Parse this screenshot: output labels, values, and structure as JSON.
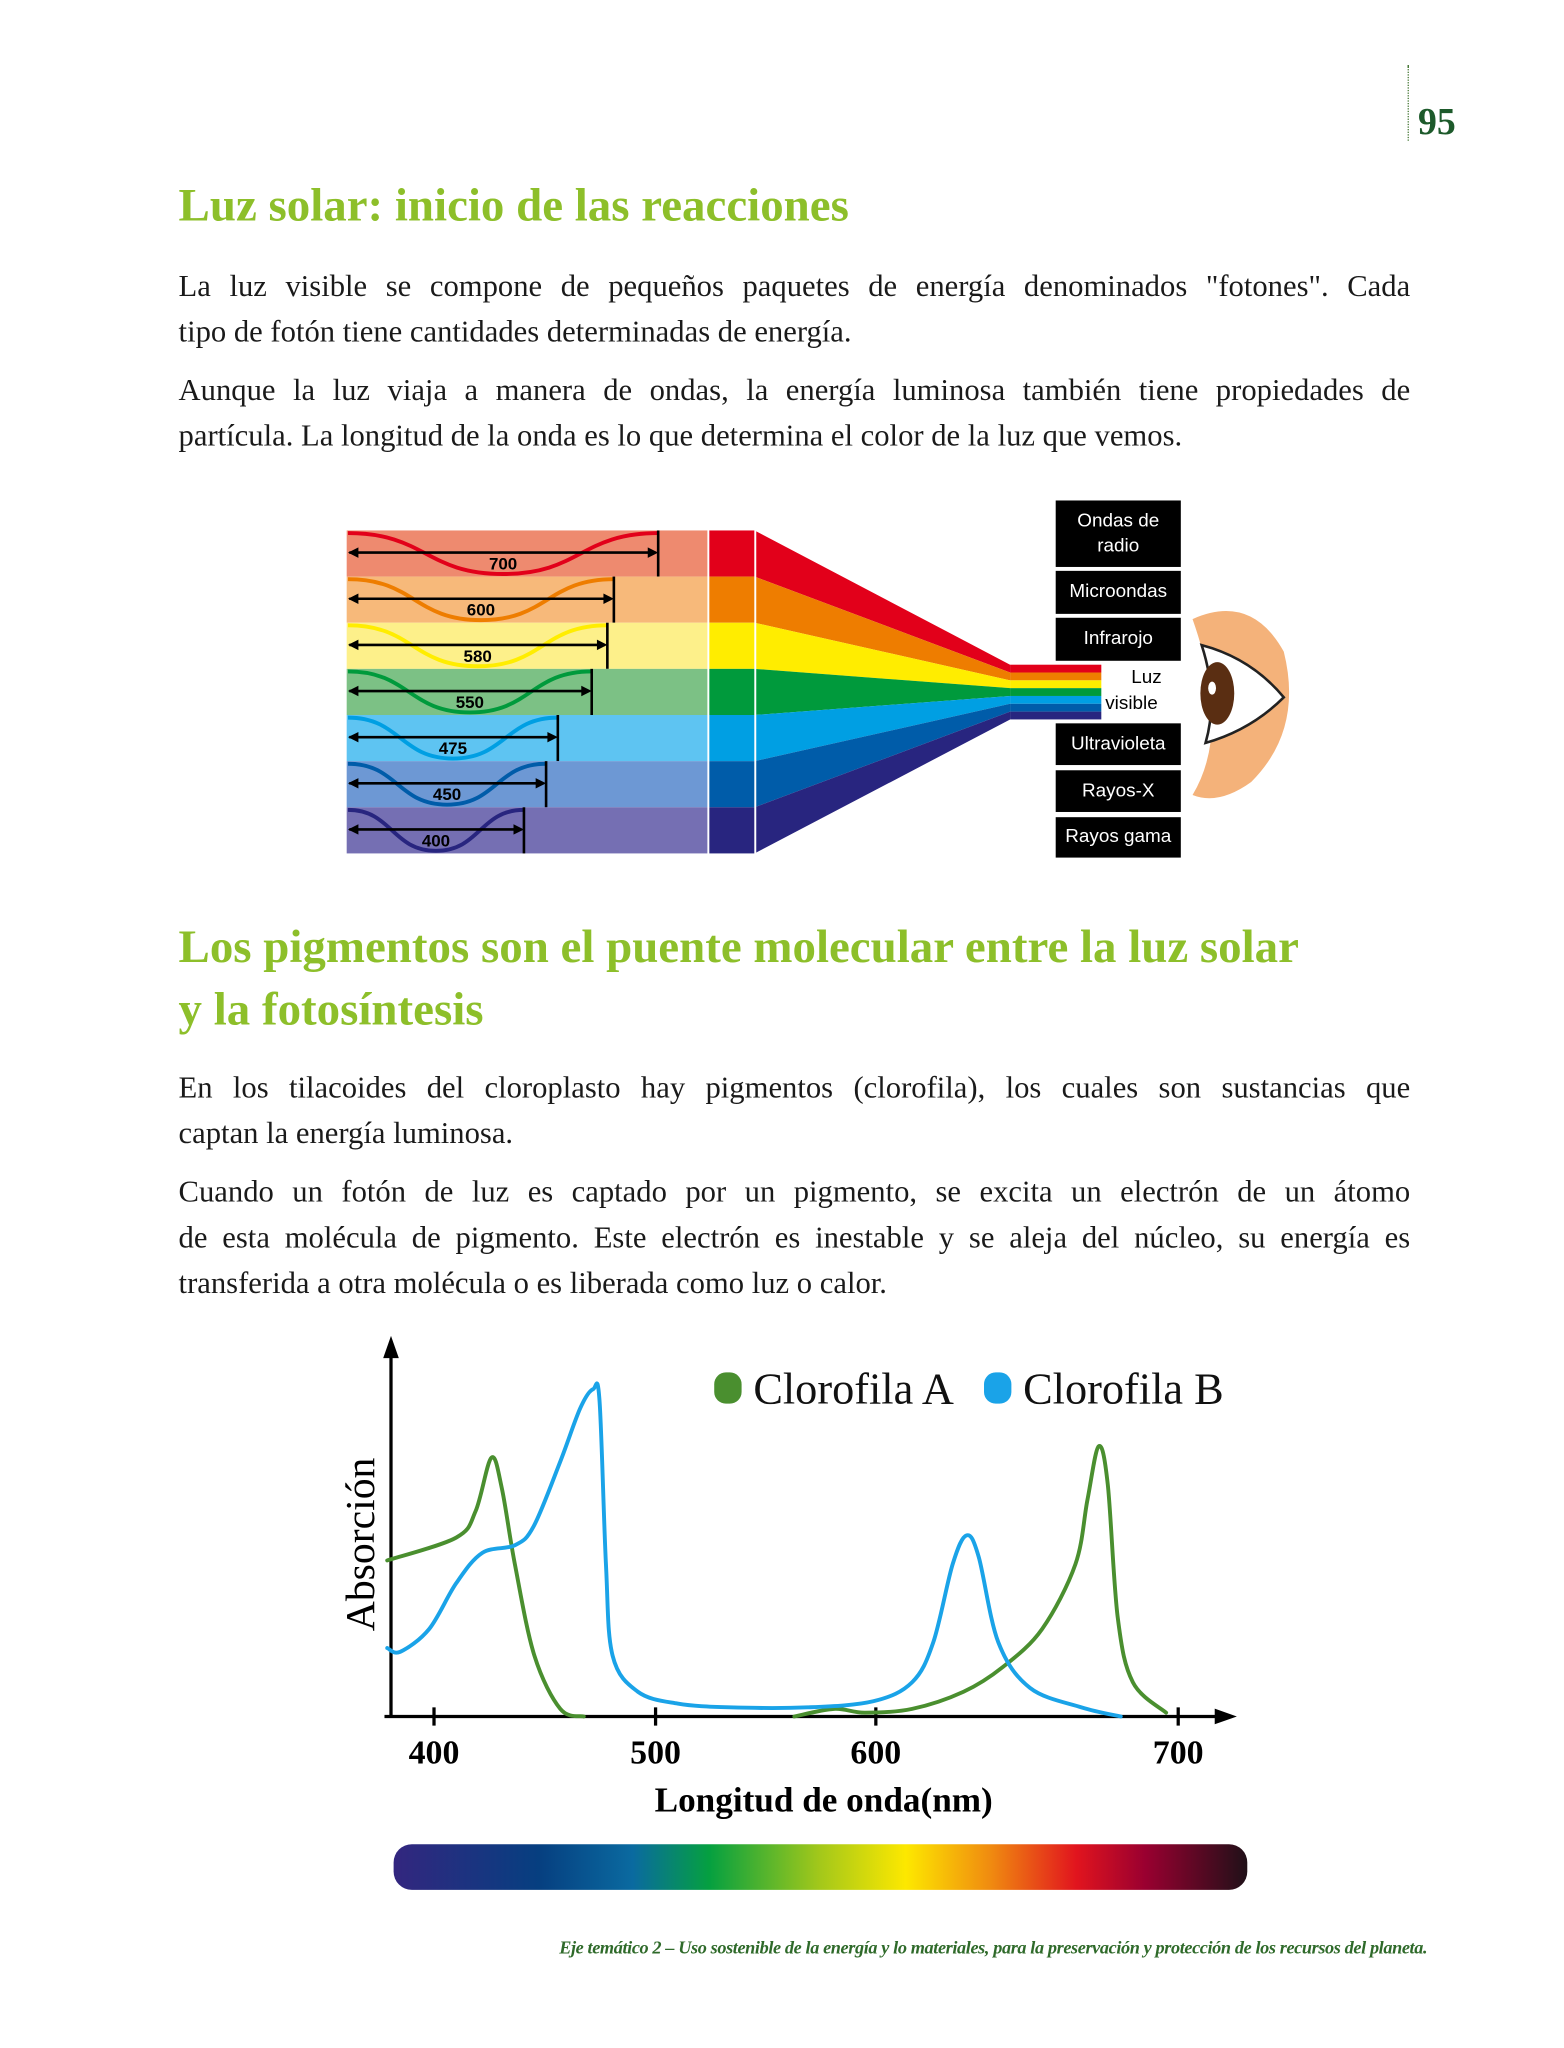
{
  "page_number": "95",
  "section1": {
    "title": "Luz solar: inicio de las reacciones",
    "paragraphs": [
      [
        "La luz visible se compone de pequeños paquetes de energía denominados \"fotones\". Cada",
        "tipo de fotón tiene cantidades determinadas de energía."
      ],
      [
        "Aunque la luz viaja a manera de ondas, la energía luminosa también tiene propiedades de",
        "partícula. La longitud de la onda es lo que determina el color de la luz que vemos."
      ]
    ]
  },
  "spectrum_figure": {
    "bands": [
      {
        "wavelength": "700",
        "pale": "#ee8a6f",
        "color": "#e2001a"
      },
      {
        "wavelength": "600",
        "pale": "#f7b97a",
        "color": "#ee7d00"
      },
      {
        "wavelength": "580",
        "pale": "#fdf08a",
        "color": "#ffed00"
      },
      {
        "wavelength": "550",
        "pale": "#7cc185",
        "color": "#009a3c"
      },
      {
        "wavelength": "475",
        "pale": "#5ec4f2",
        "color": "#009fe3"
      },
      {
        "wavelength": "450",
        "pale": "#6d98d4",
        "color": "#005ca9"
      },
      {
        "wavelength": "400",
        "pale": "#756fb3",
        "color": "#28257f"
      }
    ],
    "labels": [
      "Ondas de radio",
      "Microondas",
      "Infrarojo",
      "Ultravioleta",
      "Rayos-X",
      "Rayos gama"
    ],
    "visible_label": [
      "Luz",
      "visible"
    ]
  },
  "section2": {
    "title_lines": [
      "Los pigmentos son el puente molecular entre la luz solar",
      "y la fotosíntesis"
    ],
    "paragraphs": [
      [
        "En los tilacoides del cloroplasto hay pigmentos (clorofila), los cuales son sustancias que",
        "captan la energía luminosa."
      ],
      [
        "Cuando un fotón de luz es captado por un pigmento, se excita un electrón de un átomo",
        "de esta molécula de pigmento. Este electrón es inestable y se aleja del núcleo, su energía es",
        "transferida a otra molécula o es liberada como luz o calor."
      ]
    ]
  },
  "chart_data": {
    "type": "line",
    "xlabel": "Longitud de onda(nm)",
    "ylabel": "Absorción",
    "xticks": [
      400,
      500,
      600,
      700
    ],
    "xlim": [
      380,
      720
    ],
    "legend_placement": "top-right",
    "series": [
      {
        "name": "Clorofila A",
        "color": "#4a8f2f",
        "segments": [
          [
            [
              380.6,
              41
            ],
            [
              410,
              47
            ],
            [
              418.8,
              54
            ],
            [
              425.9,
              68
            ],
            [
              430.6,
              60
            ],
            [
              436.5,
              40
            ],
            [
              445.3,
              16
            ],
            [
              457,
              2
            ],
            [
              467.6,
              0
            ]
          ],
          [
            [
              563,
              0
            ],
            [
              581,
              2
            ],
            [
              595,
              1
            ],
            [
              612,
              2
            ],
            [
              629,
              6.5
            ],
            [
              642,
              13
            ],
            [
              655,
              23
            ],
            [
              666,
              40
            ],
            [
              670,
              57
            ],
            [
              673.7,
              71
            ],
            [
              676.7,
              61
            ],
            [
              680,
              26
            ],
            [
              685,
              9
            ],
            [
              696,
              1
            ]
          ]
        ]
      },
      {
        "name": "Clorofila B",
        "color": "#1aa3e8",
        "segments": [
          [
            [
              380.6,
              18
            ],
            [
              386,
              17
            ],
            [
              398,
              23
            ],
            [
              410,
              35
            ],
            [
              421.8,
              43
            ],
            [
              436.5,
              45
            ],
            [
              445,
              50
            ],
            [
              457,
              67
            ],
            [
              466,
              81
            ],
            [
              471.8,
              86
            ],
            [
              474.7,
              83
            ],
            [
              477.6,
              40
            ],
            [
              480.6,
              16
            ],
            [
              492,
              6.5
            ],
            [
              510,
              3.4
            ],
            [
              533.7,
              2.4
            ],
            [
              569,
              2.4
            ],
            [
              598.8,
              4
            ],
            [
              612,
              9
            ],
            [
              619,
              19.5
            ],
            [
              625.4,
              40
            ],
            [
              630,
              47.6
            ],
            [
              634,
              42
            ],
            [
              640.5,
              19.5
            ],
            [
              651,
              7.5
            ],
            [
              668,
              2.4
            ],
            [
              681,
              0
            ]
          ]
        ]
      }
    ]
  },
  "footer": "Eje temático 2 – Uso sostenible de la energía y lo materiales, para la preservación y  protección de los recursos del planeta."
}
